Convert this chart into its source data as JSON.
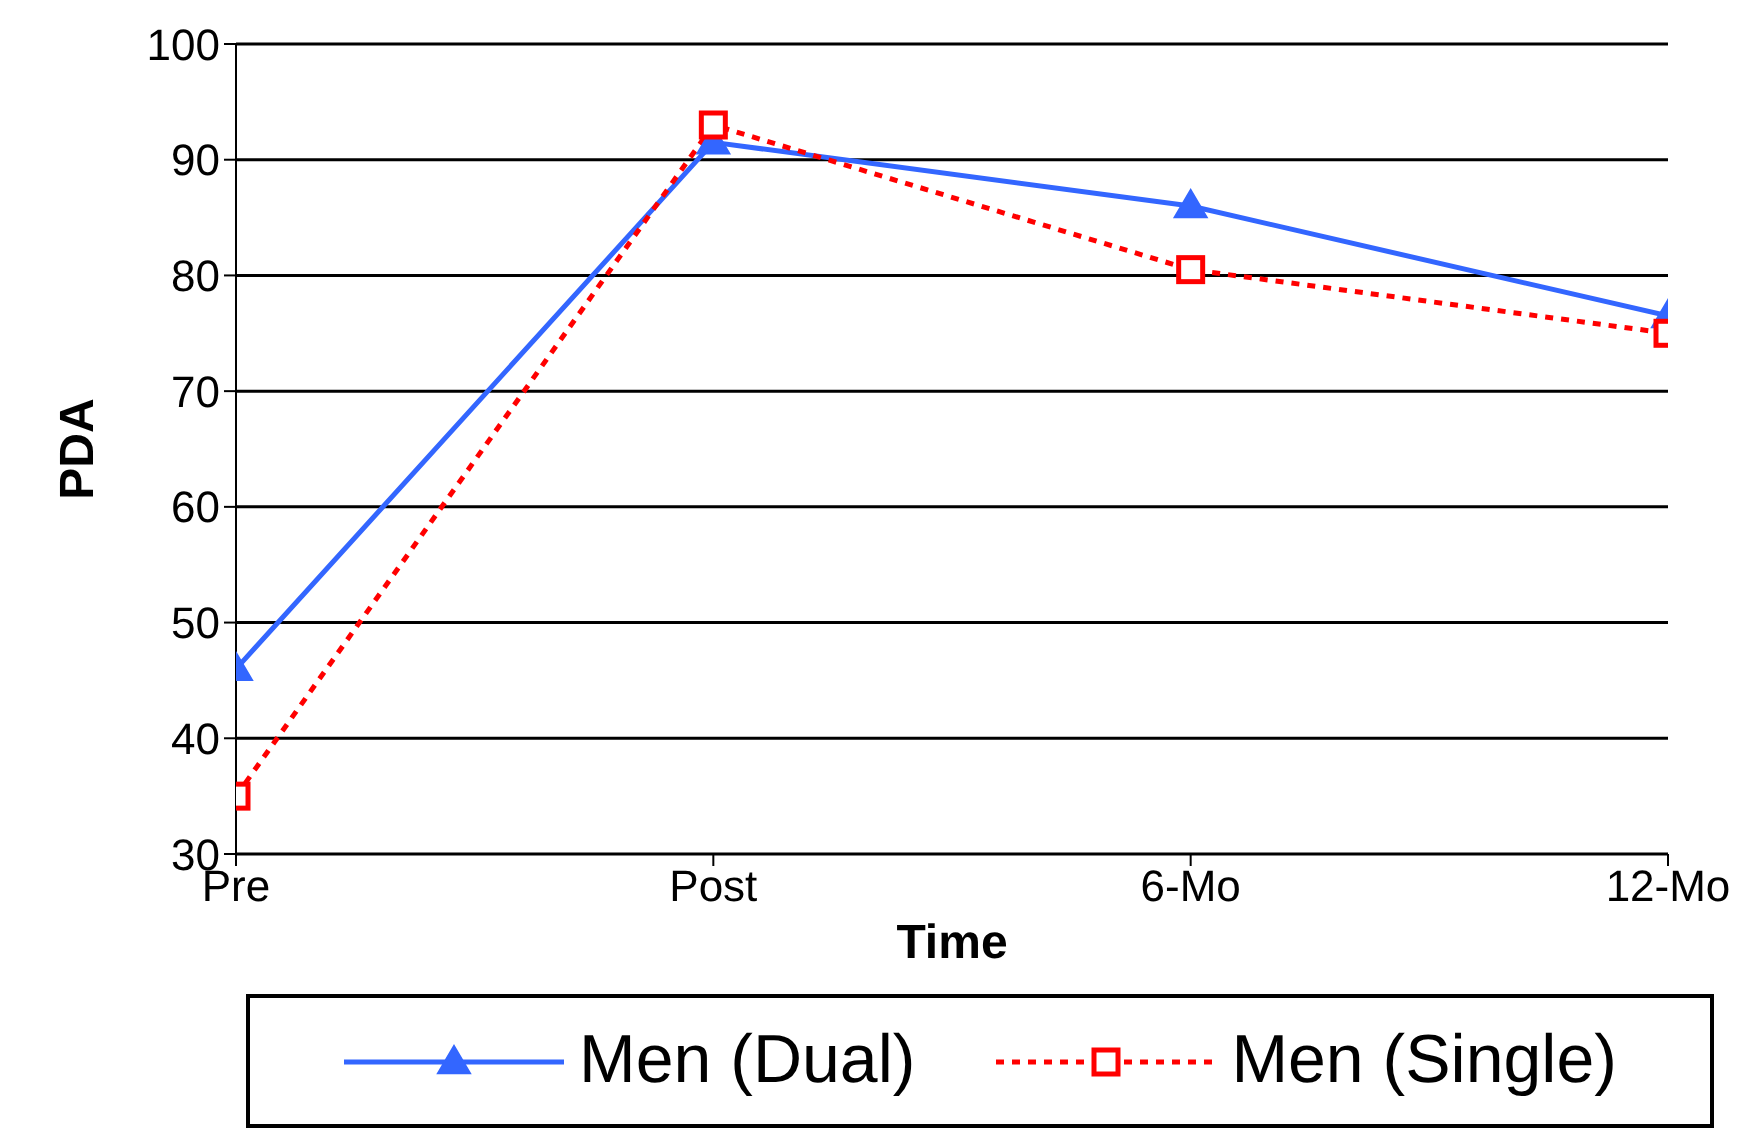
{
  "chart_data": {
    "type": "line",
    "xlabel": "Time",
    "ylabel": "PDA",
    "categories": [
      "Pre",
      "Post",
      "6-Mo",
      "12-Mo"
    ],
    "series": [
      {
        "name": "Men (Dual)",
        "color": "#3366ff",
        "values": [
          46,
          91.5,
          86,
          76.5
        ],
        "marker": "triangle",
        "line_style": "solid"
      },
      {
        "name": "Men (Single)",
        "color": "#ff0000",
        "values": [
          35,
          93,
          80.5,
          75
        ],
        "marker": "square",
        "line_style": "dotted"
      }
    ],
    "ylim": [
      30,
      100
    ],
    "yticks": [
      30,
      40,
      50,
      60,
      70,
      80,
      90,
      100
    ],
    "grid": "y",
    "legend": "bottom"
  }
}
